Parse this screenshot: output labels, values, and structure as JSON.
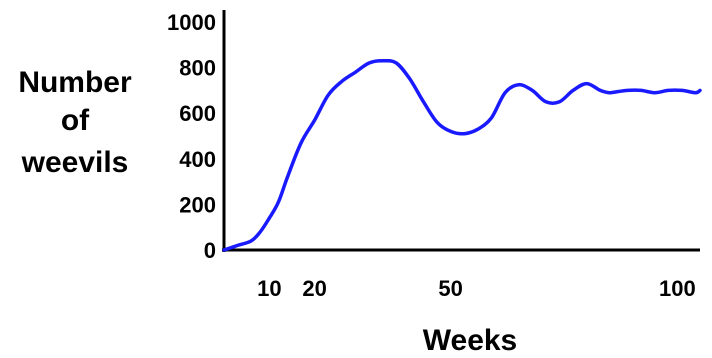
{
  "chart_data": {
    "type": "line",
    "title": "",
    "xlabel": "Weeks",
    "ylabel_lines": [
      "Number",
      "of",
      "weevils"
    ],
    "ylim": [
      0,
      1000
    ],
    "xlim": [
      0,
      105
    ],
    "x_ticks": [
      10,
      20,
      50,
      100
    ],
    "y_ticks": [
      0,
      200,
      400,
      600,
      800,
      1000
    ],
    "grid": false,
    "legend": "none",
    "series": [
      {
        "color": "#1a1aff",
        "x": [
          0,
          3,
          6,
          8,
          10,
          12,
          14,
          17,
          20,
          23,
          26,
          29,
          32,
          35,
          38,
          41,
          44,
          47,
          50,
          53,
          56,
          59,
          62,
          65,
          68,
          71,
          74,
          77,
          80,
          83,
          85,
          87,
          89,
          92,
          95,
          98,
          101,
          104,
          105
        ],
        "y": [
          0,
          20,
          40,
          80,
          140,
          210,
          320,
          470,
          570,
          680,
          740,
          780,
          820,
          830,
          820,
          750,
          650,
          560,
          520,
          510,
          530,
          580,
          690,
          725,
          700,
          650,
          650,
          700,
          730,
          700,
          690,
          695,
          700,
          700,
          690,
          700,
          700,
          690,
          700
        ]
      }
    ]
  }
}
